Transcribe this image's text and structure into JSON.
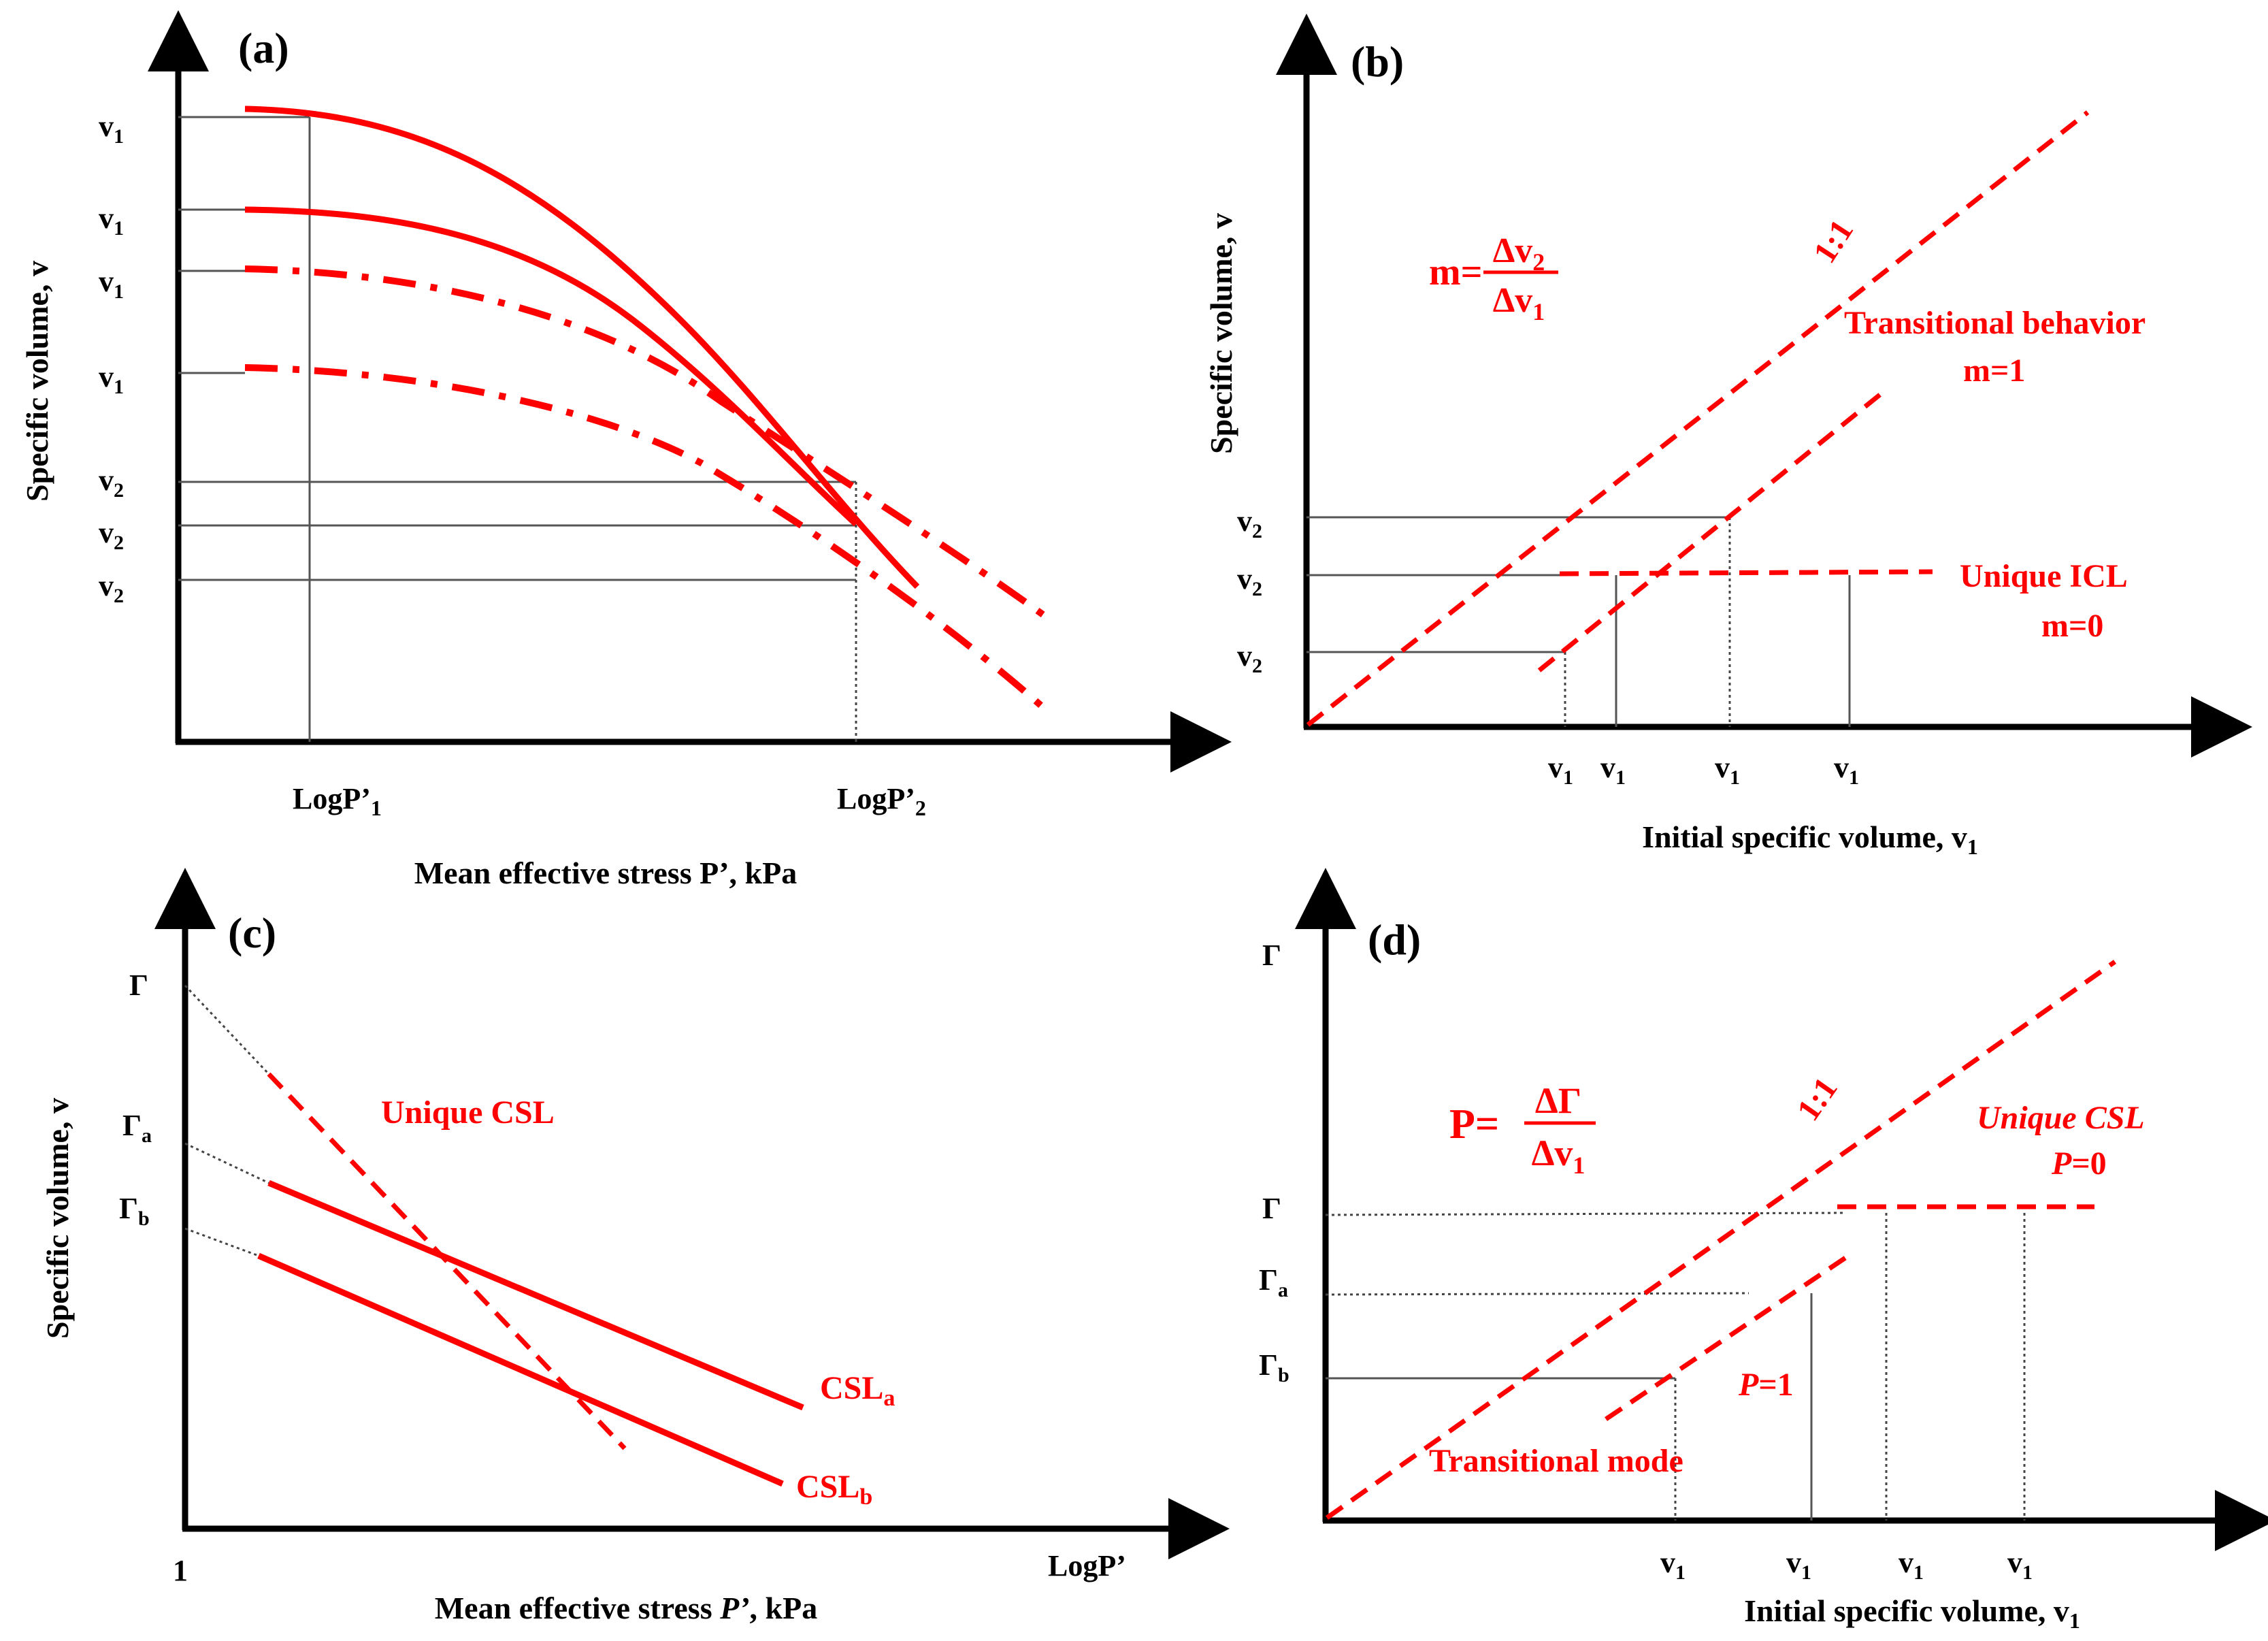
{
  "colors": {
    "curve": "#ff0000",
    "axis": "#000000",
    "guide": "#555555"
  },
  "panel_a": {
    "tag": "(a)",
    "ylabel": "Specific volume,  v",
    "xlabel": "Mean  effective  stress P’, kPa",
    "x_tick_1": "LogP’",
    "x_tick_1_sub": "1",
    "x_tick_2": "LogP’",
    "x_tick_2_sub": "2",
    "v1_labels": [
      {
        "base": "v",
        "sub": "1"
      },
      {
        "base": "v",
        "sub": "1"
      },
      {
        "base": "v",
        "sub": "1"
      },
      {
        "base": "v",
        "sub": "1"
      }
    ],
    "v2_labels": [
      {
        "base": "v",
        "sub": "2"
      },
      {
        "base": "v",
        "sub": "2"
      },
      {
        "base": "v",
        "sub": "2"
      }
    ]
  },
  "panel_b": {
    "tag": "(b)",
    "ylabel": "Specific volume,  v",
    "xlabel": "Initial  specific volume,  v",
    "xlabel_sub": "1",
    "formula_lhs": "m=",
    "formula_num": "Δv",
    "formula_num_sub": "2",
    "formula_den": "Δv",
    "formula_den_sub": "1",
    "ratio_label": "1:1",
    "transitional_label": "Transitional behavior",
    "transitional_m": "m=1",
    "unique_label": "Unique  ICL",
    "unique_m": "m=0",
    "v2_labels": [
      {
        "base": "v",
        "sub": "2"
      },
      {
        "base": "v",
        "sub": "2"
      },
      {
        "base": "v",
        "sub": "2"
      }
    ],
    "v1_labels": [
      {
        "base": "v",
        "sub": "1"
      },
      {
        "base": "v",
        "sub": "1"
      },
      {
        "base": "v",
        "sub": "1"
      },
      {
        "base": "v",
        "sub": "1"
      }
    ]
  },
  "panel_c": {
    "tag": "(c)",
    "ylabel": "Specific volume,  v",
    "xlabel": "Mean  effective  stress ",
    "xlabel_italic": "P’",
    "xlabel_unit": ", kPa",
    "origin_label": "1",
    "x_end_label": "LogP’",
    "gamma": "Γ",
    "gamma_a": "Γ",
    "gamma_a_sub": "a",
    "gamma_b": "Γ",
    "gamma_b_sub": "b",
    "unique_label": "Unique  CSL",
    "csl_a": "CSL",
    "csl_a_sub": "a",
    "csl_b": "CSL",
    "csl_b_sub": "b"
  },
  "panel_d": {
    "tag": "(d)",
    "xlabel": "Initial  specific volume,  v",
    "xlabel_sub": "1",
    "formula_lhs": "P=",
    "formula_num": "ΔΓ",
    "formula_den": "Δv",
    "formula_den_sub": "1",
    "ratio_label": "1:1",
    "unique_label": "Unique CSL",
    "unique_p": "P",
    "unique_p_val": "=0",
    "p1_p": "P",
    "p1_val": "=1",
    "transitional_label": "Transitional mode",
    "gamma_top": "Γ",
    "gamma": "Γ",
    "gamma_a": "Γ",
    "gamma_a_sub": "a",
    "gamma_b": "Γ",
    "gamma_b_sub": "b",
    "v1_labels": [
      {
        "base": "v",
        "sub": "1"
      },
      {
        "base": "v",
        "sub": "1"
      },
      {
        "base": "v",
        "sub": "1"
      },
      {
        "base": "v",
        "sub": "1"
      }
    ]
  }
}
